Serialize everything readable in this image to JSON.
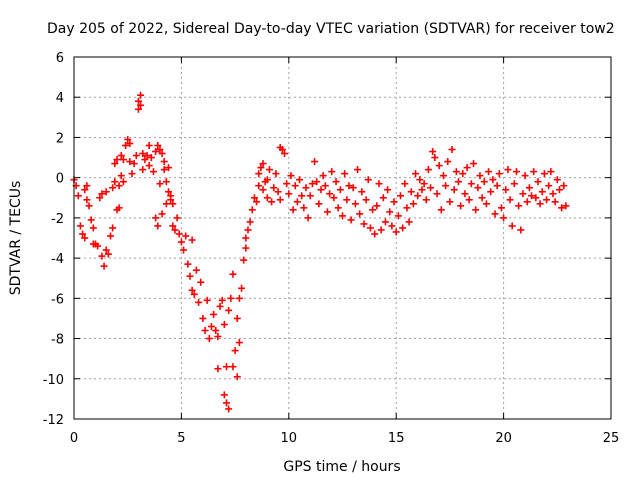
{
  "chart_data": {
    "type": "scatter",
    "title": "Day 205 of 2022, Sidereal Day-to-day VTEC variation (SDTVAR) for receiver tow2",
    "xlabel": "GPS time / hours",
    "ylabel": "SDTVAR / TECUs",
    "xlim": [
      0,
      25
    ],
    "ylim": [
      -12,
      6
    ],
    "xticks": [
      "0",
      "5",
      "10",
      "15",
      "20",
      "25"
    ],
    "yticks": [
      "-12",
      "-10",
      "-8",
      "-6",
      "-4",
      "-2",
      "0",
      "2",
      "4",
      "6"
    ],
    "grid": true,
    "marker": "+",
    "color": "#ff0000",
    "series": [
      {
        "name": "SDTVAR",
        "points": [
          [
            0.0,
            -0.1
          ],
          [
            0.1,
            -0.4
          ],
          [
            0.2,
            -0.9
          ],
          [
            0.3,
            -2.4
          ],
          [
            0.4,
            -2.8
          ],
          [
            0.5,
            -3.0
          ],
          [
            0.5,
            -0.6
          ],
          [
            0.6,
            -1.1
          ],
          [
            0.6,
            -0.4
          ],
          [
            0.7,
            -1.4
          ],
          [
            0.8,
            -2.1
          ],
          [
            0.9,
            -2.5
          ],
          [
            0.9,
            -3.3
          ],
          [
            1.0,
            -3.3
          ],
          [
            1.1,
            -3.4
          ],
          [
            1.2,
            -1.0
          ],
          [
            1.3,
            -0.8
          ],
          [
            1.3,
            -3.9
          ],
          [
            1.4,
            -4.4
          ],
          [
            1.5,
            -3.6
          ],
          [
            1.5,
            -0.7
          ],
          [
            1.6,
            -3.8
          ],
          [
            1.7,
            -2.9
          ],
          [
            1.8,
            -2.5
          ],
          [
            1.8,
            -0.5
          ],
          [
            1.9,
            -0.2
          ],
          [
            1.9,
            0.7
          ],
          [
            2.0,
            -1.6
          ],
          [
            2.0,
            0.9
          ],
          [
            2.1,
            -1.5
          ],
          [
            2.1,
            -0.4
          ],
          [
            2.2,
            0.1
          ],
          [
            2.2,
            1.1
          ],
          [
            2.3,
            -0.2
          ],
          [
            2.3,
            0.9
          ],
          [
            2.4,
            1.6
          ],
          [
            2.5,
            1.9
          ],
          [
            2.6,
            1.7
          ],
          [
            2.6,
            0.8
          ],
          [
            2.7,
            0.2
          ],
          [
            2.8,
            0.7
          ],
          [
            2.9,
            1.1
          ],
          [
            3.0,
            3.4
          ],
          [
            3.0,
            3.8
          ],
          [
            3.1,
            4.1
          ],
          [
            3.1,
            3.6
          ],
          [
            3.2,
            1.2
          ],
          [
            3.2,
            0.4
          ],
          [
            3.3,
            0.9
          ],
          [
            3.4,
            1.1
          ],
          [
            3.5,
            1.6
          ],
          [
            3.5,
            0.6
          ],
          [
            3.6,
            1.0
          ],
          [
            3.7,
            0.3
          ],
          [
            3.8,
            1.3
          ],
          [
            3.8,
            -2.0
          ],
          [
            3.9,
            1.6
          ],
          [
            3.9,
            -2.4
          ],
          [
            4.0,
            1.4
          ],
          [
            4.0,
            -0.3
          ],
          [
            4.1,
            1.2
          ],
          [
            4.1,
            -1.8
          ],
          [
            4.2,
            0.8
          ],
          [
            4.2,
            0.4
          ],
          [
            4.3,
            -0.2
          ],
          [
            4.3,
            -1.3
          ],
          [
            4.4,
            -0.7
          ],
          [
            4.4,
            0.5
          ],
          [
            4.5,
            -1.1
          ],
          [
            4.5,
            -0.9
          ],
          [
            4.6,
            -2.4
          ],
          [
            4.6,
            -1.3
          ],
          [
            4.7,
            -2.6
          ],
          [
            4.8,
            -2.0
          ],
          [
            4.9,
            -2.8
          ],
          [
            5.0,
            -3.2
          ],
          [
            5.1,
            -3.6
          ],
          [
            5.2,
            -2.9
          ],
          [
            5.3,
            -4.3
          ],
          [
            5.4,
            -4.9
          ],
          [
            5.5,
            -3.1
          ],
          [
            5.5,
            -5.6
          ],
          [
            5.6,
            -5.8
          ],
          [
            5.7,
            -4.6
          ],
          [
            5.8,
            -6.2
          ],
          [
            5.9,
            -5.2
          ],
          [
            6.0,
            -7.0
          ],
          [
            6.1,
            -7.6
          ],
          [
            6.2,
            -6.1
          ],
          [
            6.3,
            -8.0
          ],
          [
            6.4,
            -7.4
          ],
          [
            6.5,
            -6.8
          ],
          [
            6.6,
            -7.6
          ],
          [
            6.7,
            -7.9
          ],
          [
            6.7,
            -9.5
          ],
          [
            6.8,
            -6.4
          ],
          [
            6.9,
            -6.1
          ],
          [
            7.0,
            -7.3
          ],
          [
            7.0,
            -10.8
          ],
          [
            7.1,
            -9.4
          ],
          [
            7.1,
            -11.2
          ],
          [
            7.2,
            -11.5
          ],
          [
            7.2,
            -6.6
          ],
          [
            7.3,
            -6.0
          ],
          [
            7.4,
            -9.4
          ],
          [
            7.4,
            -4.8
          ],
          [
            7.5,
            -8.6
          ],
          [
            7.6,
            -9.9
          ],
          [
            7.6,
            -7.0
          ],
          [
            7.7,
            -6.0
          ],
          [
            7.7,
            -8.2
          ],
          [
            7.8,
            -5.5
          ],
          [
            7.9,
            -4.1
          ],
          [
            8.0,
            -3.5
          ],
          [
            8.0,
            -3.0
          ],
          [
            8.1,
            -2.6
          ],
          [
            8.2,
            -2.2
          ],
          [
            8.3,
            -1.6
          ],
          [
            8.4,
            -1.0
          ],
          [
            8.5,
            -1.2
          ],
          [
            8.6,
            -0.4
          ],
          [
            8.6,
            0.2
          ],
          [
            8.7,
            0.5
          ],
          [
            8.8,
            -0.6
          ],
          [
            8.8,
            0.7
          ],
          [
            8.9,
            -0.2
          ],
          [
            9.0,
            -1.0
          ],
          [
            9.0,
            -0.1
          ],
          [
            9.1,
            0.4
          ],
          [
            9.2,
            -1.2
          ],
          [
            9.3,
            -0.5
          ],
          [
            9.4,
            0.2
          ],
          [
            9.5,
            -0.7
          ],
          [
            9.6,
            1.5
          ],
          [
            9.6,
            -1.1
          ],
          [
            9.7,
            1.4
          ],
          [
            9.8,
            1.2
          ],
          [
            9.9,
            -0.3
          ],
          [
            10.0,
            -0.8
          ],
          [
            10.1,
            0.1
          ],
          [
            10.2,
            -1.6
          ],
          [
            10.3,
            -0.4
          ],
          [
            10.4,
            -1.2
          ],
          [
            10.5,
            -0.1
          ],
          [
            10.6,
            -0.9
          ],
          [
            10.7,
            -1.5
          ],
          [
            10.8,
            -0.5
          ],
          [
            10.9,
            -2.0
          ],
          [
            11.0,
            -0.9
          ],
          [
            11.1,
            -0.3
          ],
          [
            11.2,
            0.8
          ],
          [
            11.3,
            -0.2
          ],
          [
            11.4,
            -1.3
          ],
          [
            11.5,
            -0.6
          ],
          [
            11.6,
            0.1
          ],
          [
            11.7,
            -0.4
          ],
          [
            11.8,
            -1.7
          ],
          [
            11.9,
            -0.8
          ],
          [
            12.0,
            0.3
          ],
          [
            12.1,
            -1.0
          ],
          [
            12.2,
            -0.2
          ],
          [
            12.3,
            -1.5
          ],
          [
            12.4,
            -0.6
          ],
          [
            12.5,
            -1.9
          ],
          [
            12.6,
            0.2
          ],
          [
            12.7,
            -1.1
          ],
          [
            12.8,
            -0.4
          ],
          [
            12.9,
            -2.1
          ],
          [
            13.0,
            -0.5
          ],
          [
            13.1,
            -1.3
          ],
          [
            13.2,
            0.4
          ],
          [
            13.3,
            -1.8
          ],
          [
            13.4,
            -0.7
          ],
          [
            13.5,
            -2.3
          ],
          [
            13.6,
            -1.1
          ],
          [
            13.7,
            -0.1
          ],
          [
            13.8,
            -2.5
          ],
          [
            13.9,
            -1.6
          ],
          [
            14.0,
            -2.8
          ],
          [
            14.1,
            -1.4
          ],
          [
            14.2,
            -0.3
          ],
          [
            14.3,
            -2.6
          ],
          [
            14.4,
            -1.0
          ],
          [
            14.5,
            -2.2
          ],
          [
            14.6,
            -0.6
          ],
          [
            14.7,
            -1.7
          ],
          [
            14.8,
            -2.4
          ],
          [
            14.9,
            -1.2
          ],
          [
            15.0,
            -2.7
          ],
          [
            15.1,
            -1.9
          ],
          [
            15.2,
            -0.9
          ],
          [
            15.3,
            -2.5
          ],
          [
            15.4,
            -0.3
          ],
          [
            15.5,
            -1.5
          ],
          [
            15.6,
            -2.2
          ],
          [
            15.7,
            -0.7
          ],
          [
            15.8,
            -1.3
          ],
          [
            15.9,
            0.2
          ],
          [
            16.0,
            -0.9
          ],
          [
            16.1,
            -0.1
          ],
          [
            16.2,
            -0.6
          ],
          [
            16.3,
            -0.3
          ],
          [
            16.4,
            -1.1
          ],
          [
            16.5,
            0.4
          ],
          [
            16.6,
            -0.5
          ],
          [
            16.7,
            1.3
          ],
          [
            16.8,
            1.0
          ],
          [
            16.9,
            -0.8
          ],
          [
            17.0,
            0.6
          ],
          [
            17.1,
            -1.6
          ],
          [
            17.2,
            0.1
          ],
          [
            17.3,
            -0.4
          ],
          [
            17.4,
            0.8
          ],
          [
            17.5,
            -1.2
          ],
          [
            17.6,
            1.4
          ],
          [
            17.7,
            -0.6
          ],
          [
            17.8,
            0.3
          ],
          [
            17.9,
            -0.2
          ],
          [
            18.0,
            -1.4
          ],
          [
            18.1,
            0.2
          ],
          [
            18.2,
            -0.8
          ],
          [
            18.3,
            0.5
          ],
          [
            18.4,
            -1.1
          ],
          [
            18.5,
            -0.3
          ],
          [
            18.6,
            0.7
          ],
          [
            18.7,
            -1.6
          ],
          [
            18.8,
            -0.5
          ],
          [
            18.9,
            0.1
          ],
          [
            19.0,
            -1.0
          ],
          [
            19.1,
            -0.2
          ],
          [
            19.2,
            -1.3
          ],
          [
            19.3,
            0.3
          ],
          [
            19.4,
            -0.7
          ],
          [
            19.5,
            -0.1
          ],
          [
            19.6,
            -1.8
          ],
          [
            19.7,
            -0.4
          ],
          [
            19.8,
            0.2
          ],
          [
            19.9,
            -1.5
          ],
          [
            20.0,
            -2.0
          ],
          [
            20.1,
            -0.6
          ],
          [
            20.2,
            0.4
          ],
          [
            20.3,
            -1.1
          ],
          [
            20.4,
            -2.4
          ],
          [
            20.5,
            -0.3
          ],
          [
            20.6,
            0.3
          ],
          [
            20.7,
            -1.4
          ],
          [
            20.8,
            -2.6
          ],
          [
            20.9,
            -0.8
          ],
          [
            21.0,
            0.1
          ],
          [
            21.1,
            -1.2
          ],
          [
            21.2,
            -0.5
          ],
          [
            21.3,
            -0.9
          ],
          [
            21.4,
            0.3
          ],
          [
            21.5,
            -1.0
          ],
          [
            21.6,
            -0.2
          ],
          [
            21.7,
            -1.3
          ],
          [
            21.8,
            -0.7
          ],
          [
            21.9,
            0.2
          ],
          [
            22.0,
            -1.1
          ],
          [
            22.1,
            -0.4
          ],
          [
            22.2,
            0.3
          ],
          [
            22.3,
            -0.8
          ],
          [
            22.4,
            -1.2
          ],
          [
            22.5,
            -0.1
          ],
          [
            22.6,
            -0.6
          ],
          [
            22.7,
            -1.5
          ],
          [
            22.8,
            -0.4
          ],
          [
            22.9,
            -1.4
          ]
        ]
      }
    ]
  }
}
